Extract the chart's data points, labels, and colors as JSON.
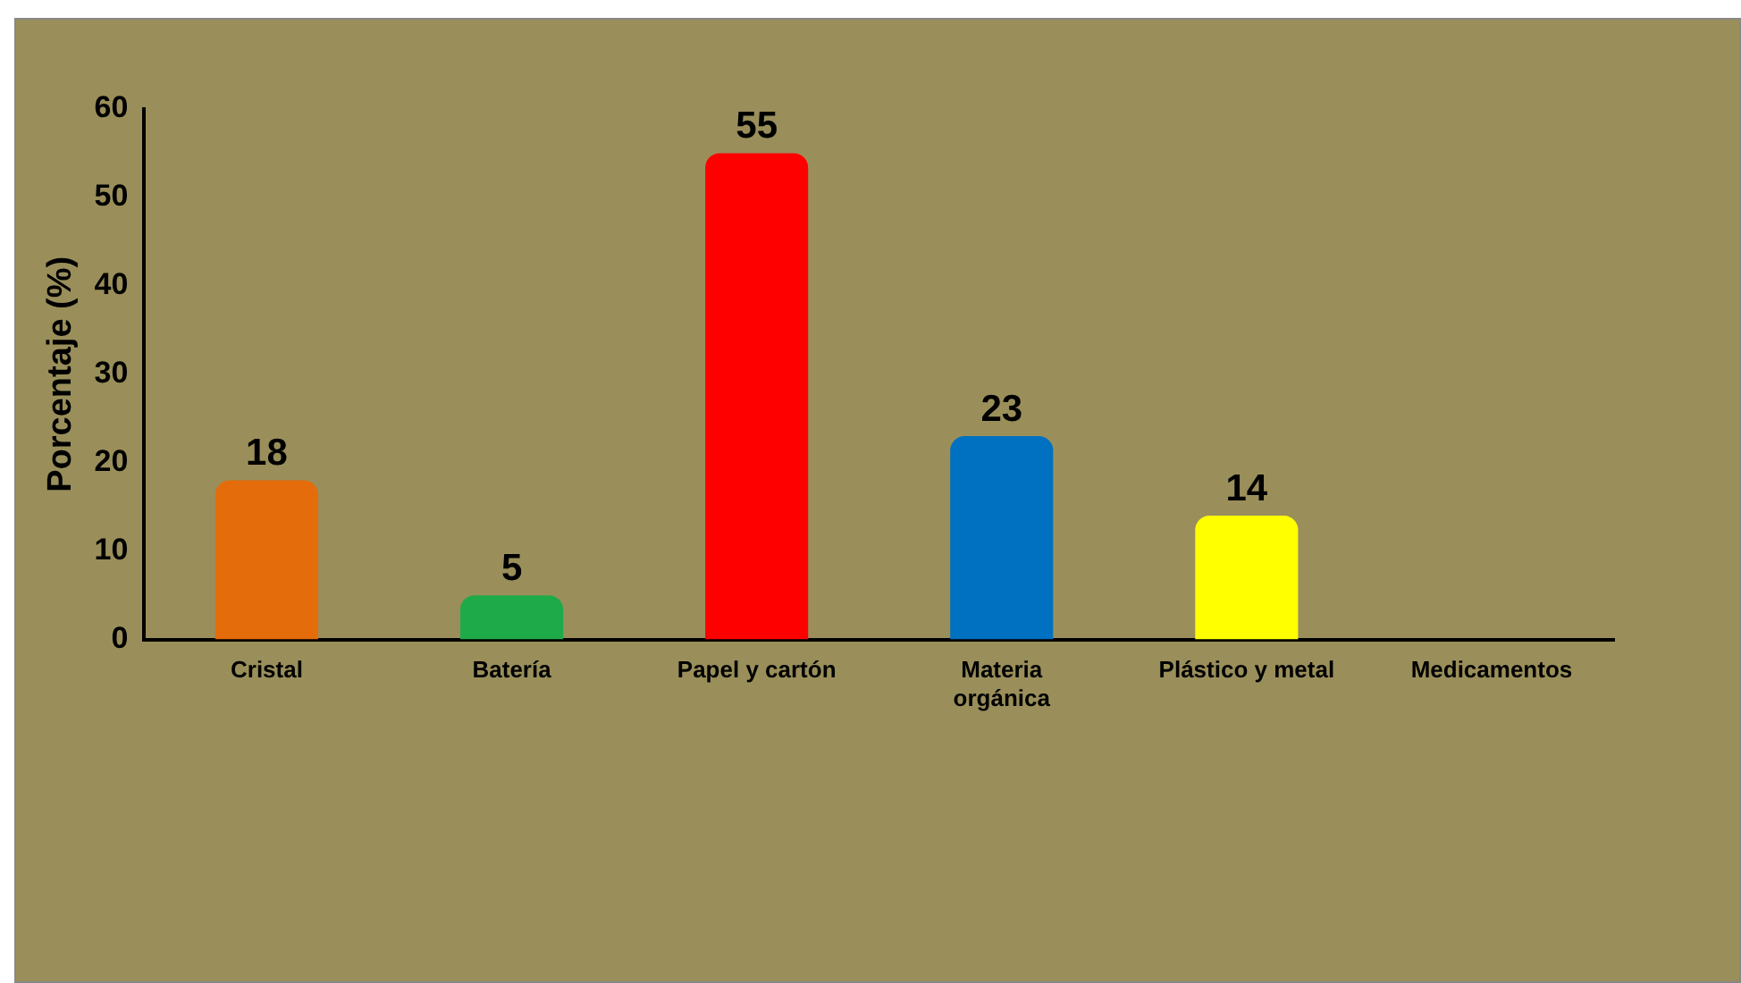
{
  "chart_data": {
    "type": "bar",
    "ylabel": "Porcentaje (%)",
    "categories": [
      "Cristal",
      "Batería",
      "Papel y cartón",
      "Materia orgánica",
      "Plástico y metal",
      "Medicamentos"
    ],
    "values": [
      18,
      5,
      55,
      23,
      14,
      0
    ],
    "colors": [
      "#e46c0a",
      "#1faa4a",
      "#ff0000",
      "#0070c0",
      "#ffff00",
      "#7f7f7f"
    ],
    "value_labels": [
      "18",
      "5",
      "55",
      "23",
      "14",
      null
    ],
    "ylim": [
      0,
      60
    ],
    "yticks": [
      0,
      10,
      20,
      30,
      40,
      50,
      60
    ],
    "grid": false,
    "legend": false
  }
}
